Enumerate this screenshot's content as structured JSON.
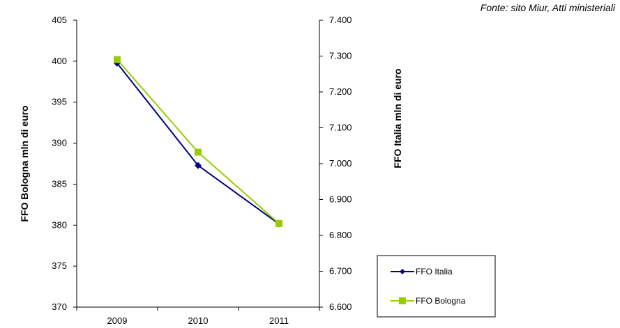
{
  "source_note": "Fonte: sito Miur, Atti ministeriali",
  "chart_data": {
    "type": "line",
    "x": [
      "2009",
      "2010",
      "2011"
    ],
    "left_axis": {
      "label": "FFO Bologna mln di euro",
      "ylim": [
        370,
        405
      ],
      "ticks": [
        "370",
        "375",
        "380",
        "385",
        "390",
        "395",
        "400",
        "405"
      ]
    },
    "right_axis": {
      "label": "FFO Italia mln di euro",
      "ylim": [
        6600,
        7400
      ],
      "ticks": [
        "6.600",
        "6.700",
        "6.800",
        "6.900",
        "7.000",
        "7.100",
        "7.200",
        "7.300",
        "7.400"
      ]
    },
    "series": [
      {
        "name": "FFO Italia",
        "axis": "right",
        "values": [
          7280,
          6995,
          6832
        ],
        "color": "#000080",
        "marker": "diamond"
      },
      {
        "name": "FFO Bologna",
        "axis": "left",
        "values": [
          400.2,
          388.9,
          380.2
        ],
        "color": "#99CC00",
        "marker": "square"
      }
    ],
    "legend_position": "bottom-right",
    "grid": false
  }
}
